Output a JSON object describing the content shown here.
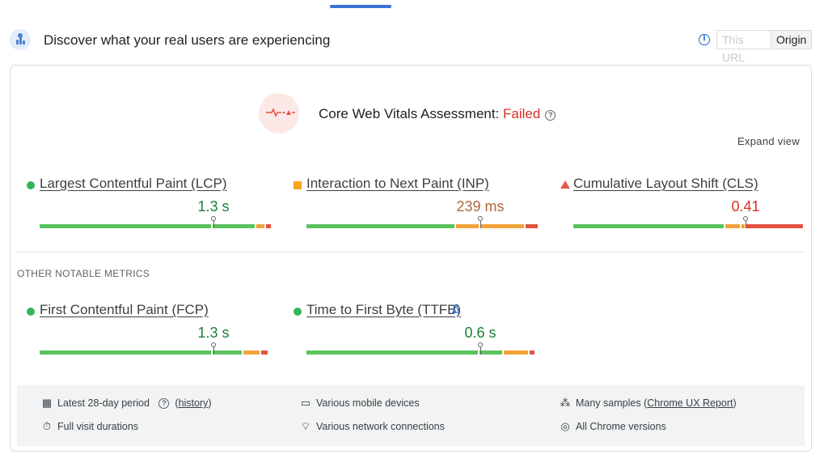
{
  "header": {
    "title": "Discover what your real users are experiencing",
    "toggle": {
      "this_url": "This URL",
      "origin": "Origin"
    }
  },
  "assessment": {
    "label": "Core Web Vitals Assessment: ",
    "status": "Failed",
    "expand": "Expand view"
  },
  "core_metrics": [
    {
      "name": "Largest Contentful Paint (LCP)",
      "value": "1.3 s",
      "rating": "good",
      "marker": "circle",
      "marker_pct": 0.75
    },
    {
      "name": "Interaction to Next Paint (INP)",
      "value": "239 ms",
      "rating": "needs-improvement",
      "marker": "square",
      "marker_pct": 0.755
    },
    {
      "name": "Cumulative Layout Shift (CLS)",
      "value": "0.41",
      "rating": "poor",
      "marker": "triangle",
      "marker_pct": 0.755
    }
  ],
  "other": {
    "label": "OTHER NOTABLE METRICS",
    "metrics": [
      {
        "name": "First Contentful Paint (FCP)",
        "value": "1.3 s",
        "rating": "good",
        "marker": "circle",
        "marker_pct": 0.75
      },
      {
        "name": "Time to First Byte (TTFB)",
        "value": "0.6 s",
        "rating": "good",
        "marker": "circle",
        "marker_pct": 0.755
      }
    ]
  },
  "footer": {
    "period": "Latest 28-day period",
    "history": "history",
    "durations": "Full visit durations",
    "devices": "Various mobile devices",
    "network": "Various network connections",
    "samples": "Many samples",
    "crux": "Chrome UX Report",
    "versions": "All Chrome versions"
  },
  "icons": {
    "header": "field-data-icon",
    "info": "info-icon",
    "help": "help-icon",
    "calendar": "calendar-icon",
    "stopwatch": "stopwatch-icon",
    "devices": "devices-icon",
    "wifi": "wifi-icon",
    "samples": "samples-icon",
    "chrome": "chrome-icon",
    "lab": "flask-icon"
  },
  "colors": {
    "good": "#188038",
    "needs_improvement": "#b0673a",
    "poor": "#d93025",
    "accent": "#3c71d6"
  }
}
